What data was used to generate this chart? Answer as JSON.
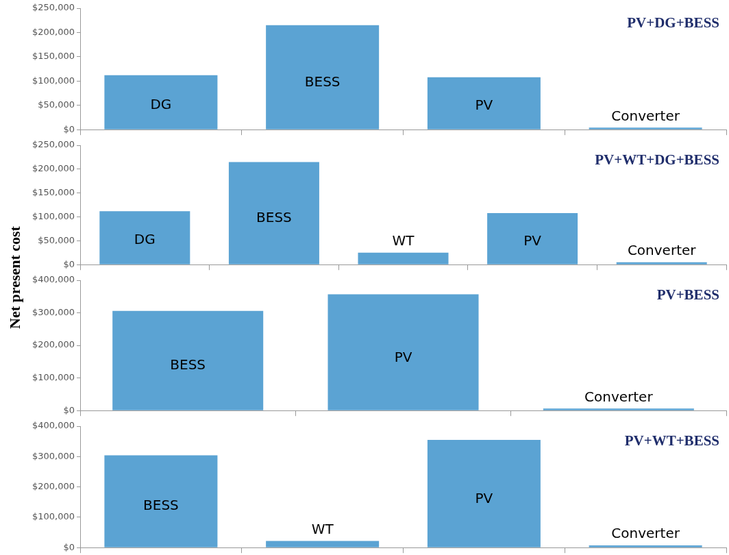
{
  "chart_data": [
    {
      "type": "bar",
      "title": "PV+DG+BESS",
      "categories": [
        "DG",
        "BESS",
        "PV",
        "Converter"
      ],
      "values": [
        112000,
        215000,
        108000,
        4000
      ],
      "color": "#5ba3d3",
      "ylim": [
        0,
        250000
      ],
      "yticks": [
        {
          "value": 0,
          "label": "$0"
        },
        {
          "value": 50000,
          "label": "$50,000"
        },
        {
          "value": 100000,
          "label": "$100,000"
        },
        {
          "value": 150000,
          "label": "$150,000"
        },
        {
          "value": 200000,
          "label": "$200,000"
        },
        {
          "value": 250000,
          "label": "$250,000"
        }
      ],
      "tick_labels": "y",
      "grid": false,
      "legend": false
    },
    {
      "type": "bar",
      "title": "PV+WT+DG+BESS",
      "ylabel": "Net present cost",
      "categories": [
        "DG",
        "BESS",
        "WT",
        "PV",
        "Converter"
      ],
      "values": [
        112000,
        215000,
        25000,
        108000,
        5000
      ],
      "color": "#5ba3d3",
      "ylim": [
        0,
        250000
      ],
      "yticks": [
        {
          "value": 0,
          "label": "$0"
        },
        {
          "value": 50000,
          "label": "$50,000"
        },
        {
          "value": 100000,
          "label": "$100,000"
        },
        {
          "value": 150000,
          "label": "$150,000"
        },
        {
          "value": 200000,
          "label": "$200,000"
        },
        {
          "value": 250000,
          "label": "$250,000"
        }
      ],
      "tick_labels": "y",
      "grid": false,
      "legend": false
    },
    {
      "type": "bar",
      "title": "PV+BESS",
      "categories": [
        "BESS",
        "PV",
        "Converter"
      ],
      "values": [
        306000,
        357000,
        6000
      ],
      "color": "#5ba3d3",
      "ylim": [
        0,
        400000
      ],
      "yticks": [
        {
          "value": 0,
          "label": "$0"
        },
        {
          "value": 100000,
          "label": "$100,000"
        },
        {
          "value": 200000,
          "label": "$200,000"
        },
        {
          "value": 300000,
          "label": "$300,000"
        },
        {
          "value": 400000,
          "label": "$400,000"
        }
      ],
      "tick_labels": "y",
      "grid": false,
      "legend": false
    },
    {
      "type": "bar",
      "title": "PV+WT+BESS",
      "categories": [
        "BESS",
        "WT",
        "PV",
        "Converter"
      ],
      "values": [
        304000,
        22000,
        355000,
        7000
      ],
      "color": "#5ba3d3",
      "ylim": [
        0,
        400000
      ],
      "yticks": [
        {
          "value": 0,
          "label": "$0"
        },
        {
          "value": 100000,
          "label": "$100,000"
        },
        {
          "value": 200000,
          "label": "$200,000"
        },
        {
          "value": 300000,
          "label": "$300,000"
        },
        {
          "value": 400000,
          "label": "$400,000"
        }
      ],
      "tick_labels": "y",
      "grid": false,
      "legend": false
    }
  ]
}
